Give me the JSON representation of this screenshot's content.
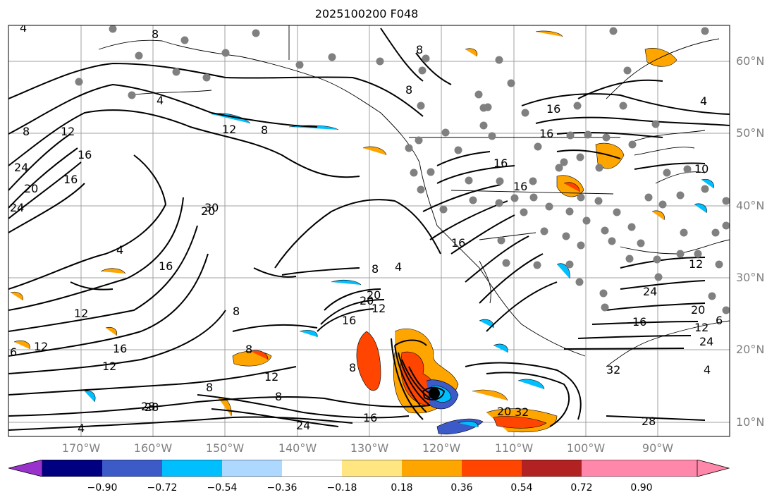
{
  "title": "2025100200 F048",
  "map": {
    "lat_labels": [
      "60°N",
      "50°N",
      "40°N",
      "30°N",
      "20°N",
      "10°N"
    ],
    "lon_labels": [
      "170°W",
      "160°W",
      "150°W",
      "140°W",
      "130°W",
      "120°W",
      "110°W",
      "100°W",
      "90°W"
    ],
    "contour_labels": [
      "4",
      "8",
      "8",
      "12",
      "8",
      "4",
      "16",
      "12",
      "20",
      "24",
      "20",
      "16",
      "4",
      "16",
      "24",
      "12",
      "16",
      "6",
      "12",
      "12",
      "8",
      "16",
      "20",
      "12",
      "8",
      "8",
      "4",
      "8",
      "16",
      "28",
      "8",
      "12",
      "16",
      "20",
      "32",
      "4",
      "8",
      "16",
      "24",
      "30",
      "8",
      "8",
      "16",
      "12",
      "16",
      "20",
      "24",
      "16",
      "28",
      "32",
      "28",
      "4",
      "6",
      "16",
      "20",
      "10",
      "12",
      "24",
      "4"
    ]
  },
  "colorbar": {
    "colors": [
      "#9932cc",
      "#000080",
      "#3c5ac8",
      "#00bfff",
      "#add8ff",
      "#ffffff",
      "#ffe680",
      "#ffa500",
      "#ff4500",
      "#b22222",
      "#ff88aa"
    ],
    "tick_labels": [
      "−0.90",
      "−0.72",
      "−0.54",
      "−0.36",
      "−0.18",
      "0.18",
      "0.36",
      "0.54",
      "0.72",
      "0.90"
    ]
  },
  "colors": {
    "contour": "#000000",
    "grid": "#a0a0a0",
    "station": "#808080",
    "storm_center": "#000000"
  }
}
